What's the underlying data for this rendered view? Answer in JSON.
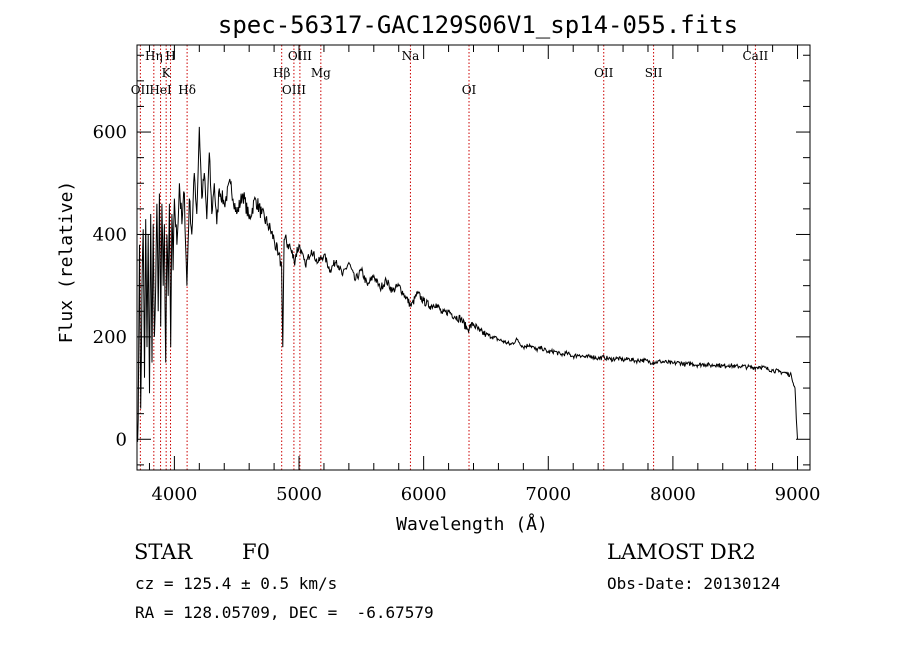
{
  "chart_data": {
    "type": "line",
    "title": "spec-56317-GAC129S06V1_sp14-055.fits",
    "xlabel": "Wavelength (Å)",
    "ylabel": "Flux (relative)",
    "xlim": [
      3700,
      9100
    ],
    "ylim": [
      -60,
      770
    ],
    "xticks": [
      4000,
      5000,
      6000,
      7000,
      8000,
      9000
    ],
    "yticks": [
      0,
      200,
      400,
      600
    ],
    "grid": false,
    "spectrum_points": [
      [
        3700,
        0
      ],
      [
        3710,
        40
      ],
      [
        3720,
        380
      ],
      [
        3730,
        60
      ],
      [
        3740,
        300
      ],
      [
        3750,
        410
      ],
      [
        3760,
        120
      ],
      [
        3770,
        430
      ],
      [
        3780,
        180
      ],
      [
        3790,
        400
      ],
      [
        3800,
        90
      ],
      [
        3810,
        440
      ],
      [
        3820,
        150
      ],
      [
        3830,
        420
      ],
      [
        3840,
        200
      ],
      [
        3850,
        300
      ],
      [
        3860,
        460
      ],
      [
        3870,
        250
      ],
      [
        3880,
        480
      ],
      [
        3890,
        220
      ],
      [
        3900,
        460
      ],
      [
        3910,
        300
      ],
      [
        3920,
        420
      ],
      [
        3930,
        150
      ],
      [
        3940,
        400
      ],
      [
        3950,
        280
      ],
      [
        3960,
        460
      ],
      [
        3970,
        180
      ],
      [
        3980,
        440
      ],
      [
        3990,
        330
      ],
      [
        4000,
        470
      ],
      [
        4020,
        380
      ],
      [
        4040,
        500
      ],
      [
        4060,
        420
      ],
      [
        4080,
        480
      ],
      [
        4100,
        300
      ],
      [
        4120,
        470
      ],
      [
        4140,
        400
      ],
      [
        4160,
        520
      ],
      [
        4180,
        440
      ],
      [
        4200,
        610
      ],
      [
        4220,
        470
      ],
      [
        4240,
        520
      ],
      [
        4260,
        430
      ],
      [
        4280,
        560
      ],
      [
        4300,
        440
      ],
      [
        4320,
        500
      ],
      [
        4340,
        420
      ],
      [
        4360,
        490
      ],
      [
        4400,
        460
      ],
      [
        4450,
        500
      ],
      [
        4500,
        440
      ],
      [
        4550,
        480
      ],
      [
        4600,
        430
      ],
      [
        4650,
        470
      ],
      [
        4700,
        440
      ],
      [
        4750,
        420
      ],
      [
        4800,
        390
      ],
      [
        4830,
        360
      ],
      [
        4860,
        340
      ],
      [
        4870,
        180
      ],
      [
        4880,
        390
      ],
      [
        4920,
        380
      ],
      [
        4960,
        350
      ],
      [
        5000,
        380
      ],
      [
        5050,
        340
      ],
      [
        5100,
        370
      ],
      [
        5150,
        345
      ],
      [
        5200,
        360
      ],
      [
        5250,
        330
      ],
      [
        5300,
        350
      ],
      [
        5350,
        320
      ],
      [
        5400,
        345
      ],
      [
        5450,
        310
      ],
      [
        5500,
        330
      ],
      [
        5550,
        300
      ],
      [
        5600,
        320
      ],
      [
        5650,
        295
      ],
      [
        5700,
        310
      ],
      [
        5750,
        290
      ],
      [
        5800,
        300
      ],
      [
        5850,
        280
      ],
      [
        5900,
        260
      ],
      [
        5950,
        285
      ],
      [
        6000,
        270
      ],
      [
        6050,
        260
      ],
      [
        6100,
        265
      ],
      [
        6150,
        245
      ],
      [
        6200,
        250
      ],
      [
        6250,
        240
      ],
      [
        6300,
        235
      ],
      [
        6350,
        215
      ],
      [
        6400,
        225
      ],
      [
        6450,
        210
      ],
      [
        6500,
        205
      ],
      [
        6550,
        200
      ],
      [
        6600,
        195
      ],
      [
        6650,
        190
      ],
      [
        6700,
        185
      ],
      [
        6750,
        195
      ],
      [
        6800,
        180
      ],
      [
        6850,
        185
      ],
      [
        6900,
        175
      ],
      [
        6950,
        178
      ],
      [
        7000,
        170
      ],
      [
        7050,
        172
      ],
      [
        7100,
        165
      ],
      [
        7150,
        168
      ],
      [
        7200,
        162
      ],
      [
        7250,
        165
      ],
      [
        7300,
        160
      ],
      [
        7350,
        162
      ],
      [
        7400,
        158
      ],
      [
        7450,
        160
      ],
      [
        7500,
        156
      ],
      [
        7550,
        158
      ],
      [
        7600,
        155
      ],
      [
        7650,
        157
      ],
      [
        7700,
        153
      ],
      [
        7750,
        155
      ],
      [
        7800,
        152
      ],
      [
        7850,
        150
      ],
      [
        7900,
        152
      ],
      [
        7950,
        150
      ],
      [
        8000,
        148
      ],
      [
        8050,
        150
      ],
      [
        8100,
        146
      ],
      [
        8150,
        148
      ],
      [
        8200,
        145
      ],
      [
        8250,
        147
      ],
      [
        8300,
        144
      ],
      [
        8350,
        146
      ],
      [
        8400,
        143
      ],
      [
        8450,
        145
      ],
      [
        8500,
        142
      ],
      [
        8550,
        143
      ],
      [
        8600,
        141
      ],
      [
        8650,
        140
      ],
      [
        8700,
        142
      ],
      [
        8750,
        138
      ],
      [
        8800,
        135
      ],
      [
        8850,
        132
      ],
      [
        8900,
        130
      ],
      [
        8950,
        125
      ],
      [
        8980,
        100
      ],
      [
        8990,
        40
      ],
      [
        9000,
        0
      ]
    ],
    "lines": [
      {
        "label": "OII",
        "wavelength": 3727,
        "tier": 3
      },
      {
        "label": "Hη",
        "wavelength": 3835,
        "tier": 0
      },
      {
        "label": "HeI",
        "wavelength": 3889,
        "tier": 3
      },
      {
        "label": "K",
        "wavelength": 3934,
        "tier": 1
      },
      {
        "label": "H",
        "wavelength": 3969,
        "tier": 0
      },
      {
        "label": "Hδ",
        "wavelength": 4102,
        "tier": 3
      },
      {
        "label": "Hβ",
        "wavelength": 4861,
        "tier": 1
      },
      {
        "label": "OIII",
        "wavelength": 4959,
        "tier": 3
      },
      {
        "label": "OIII",
        "wavelength": 5007,
        "tier": 0
      },
      {
        "label": "Mg",
        "wavelength": 5175,
        "tier": 1
      },
      {
        "label": "Na",
        "wavelength": 5894,
        "tier": 0
      },
      {
        "label": "OI",
        "wavelength": 6364,
        "tier": 3
      },
      {
        "label": "OII",
        "wavelength": 7445,
        "tier": 2
      },
      {
        "label": "SII",
        "wavelength": 7845,
        "tier": 2
      },
      {
        "label": "CaII",
        "wavelength": 8662,
        "tier": 0
      }
    ],
    "line_color": "#000000",
    "marker_color": "#cc0000"
  },
  "info": {
    "class": "STAR",
    "subclass": "F0",
    "survey": "LAMOST DR2",
    "cz": "cz = 125.4 ± 0.5 km/s",
    "obs_date": "Obs-Date: 20130124",
    "coords": "RA = 128.05709, DEC =  -6.67579"
  }
}
